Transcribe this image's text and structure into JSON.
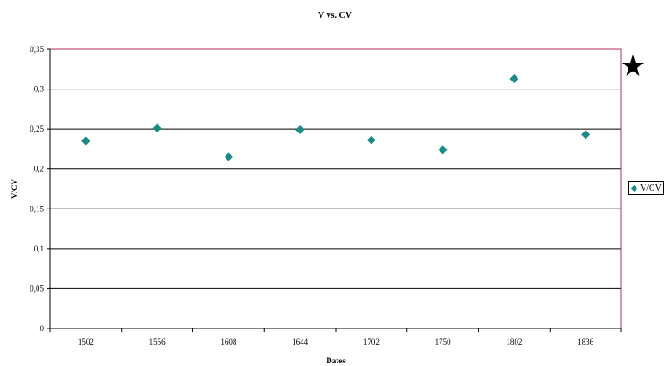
{
  "chart_data": {
    "type": "scatter",
    "title": "V vs. CV",
    "xlabel": "Dates",
    "ylabel": "V/CV",
    "categories": [
      "1502",
      "1556",
      "1608",
      "1644",
      "1702",
      "1750",
      "1802",
      "1836"
    ],
    "series": [
      {
        "name": "V/CV",
        "values": [
          0.235,
          0.251,
          0.215,
          0.249,
          0.236,
          0.224,
          0.313,
          0.243
        ]
      }
    ],
    "ylim": [
      0,
      0.35
    ],
    "yticks": [
      "0",
      "0,05",
      "0,1",
      "0,15",
      "0,2",
      "0,25",
      "0,3",
      "0,35"
    ],
    "grid": true,
    "legend_position": "right",
    "marker": "diamond",
    "colors": {
      "marker": "#1a8a84",
      "plot_border": "#b03050",
      "gridline": "#000000"
    }
  },
  "annotation": {
    "icon": "star-icon"
  }
}
